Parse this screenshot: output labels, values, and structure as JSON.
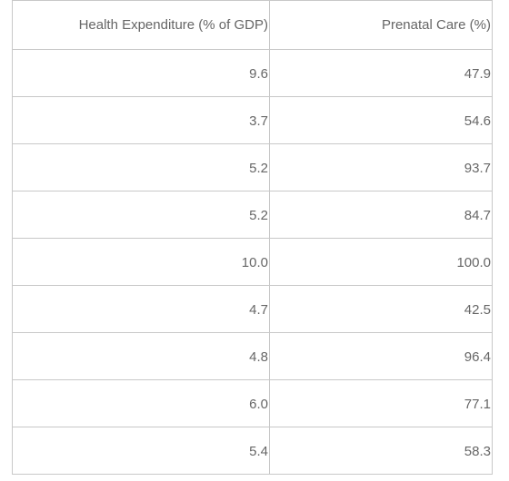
{
  "table": {
    "headers": [
      "Health Expenditure (% of GDP)",
      "Prenatal Care (%)"
    ],
    "rows": [
      [
        "9.6",
        "47.9"
      ],
      [
        "3.7",
        "54.6"
      ],
      [
        "5.2",
        "93.7"
      ],
      [
        "5.2",
        "84.7"
      ],
      [
        "10.0",
        "100.0"
      ],
      [
        "4.7",
        "42.5"
      ],
      [
        "4.8",
        "96.4"
      ],
      [
        "6.0",
        "77.1"
      ],
      [
        "5.4",
        "58.3"
      ]
    ]
  }
}
